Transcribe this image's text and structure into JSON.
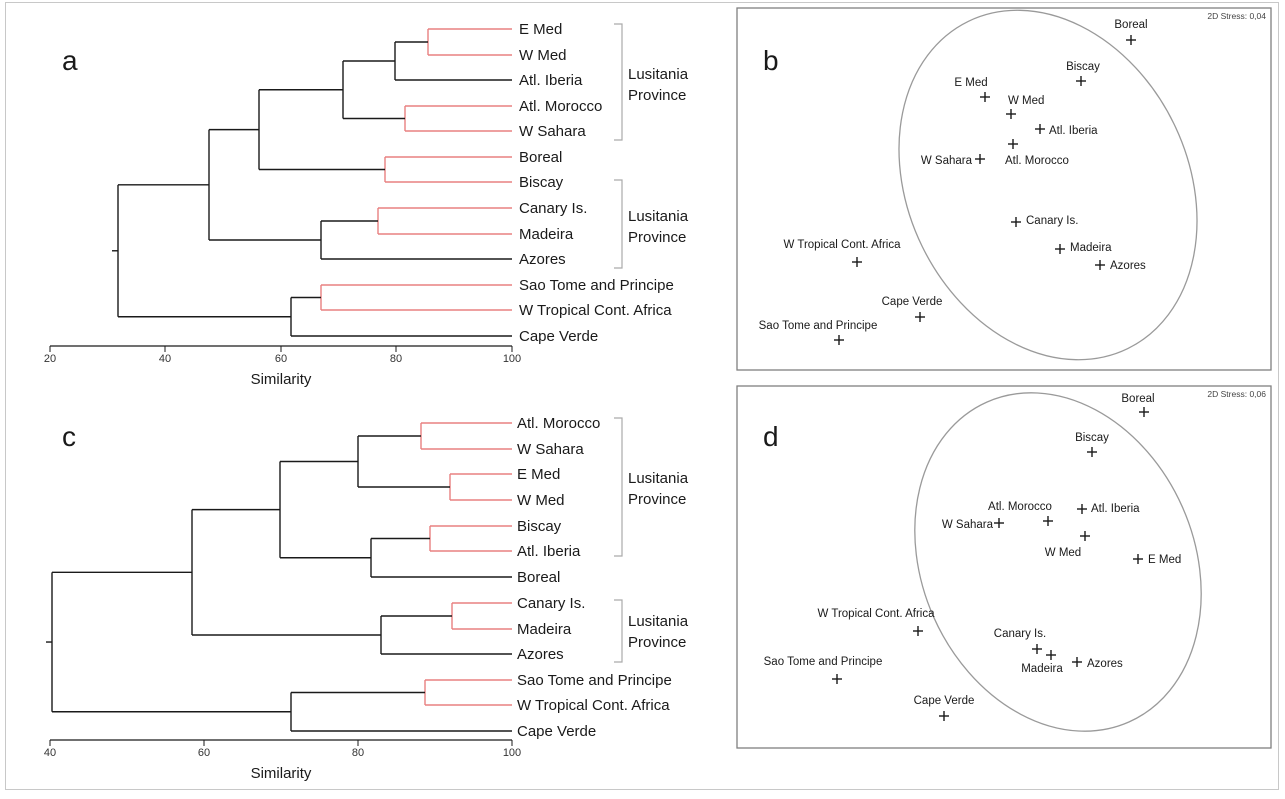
{
  "panels": {
    "a": {
      "letter": "a",
      "leaves": [
        "E Med",
        "W Med",
        "Atl. Iberia",
        "Atl. Morocco",
        "W Sahara",
        "Boreal",
        "Biscay",
        "Canary Is.",
        "Madeira",
        "Azores",
        "Sao Tome and Principe",
        "W Tropical Cont. Africa",
        "Cape Verde"
      ],
      "groups": [
        {
          "line1": "Lusitania",
          "line2": "Province"
        },
        {
          "line1": "Lusitania",
          "line2": "Province"
        }
      ],
      "axis": {
        "min": 20,
        "max": 100,
        "ticks": [
          "20",
          "40",
          "60",
          "80",
          "100"
        ],
        "label": "Similarity"
      }
    },
    "b": {
      "letter": "b",
      "stress": "2D Stress: 0,04",
      "points": [
        {
          "label": "Boreal"
        },
        {
          "label": "Biscay"
        },
        {
          "label": "E Med"
        },
        {
          "label": "W Med"
        },
        {
          "label": "Atl. Iberia"
        },
        {
          "label": "W Sahara"
        },
        {
          "label": "Atl. Morocco"
        },
        {
          "label": "Canary Is."
        },
        {
          "label": "W Tropical Cont. Africa"
        },
        {
          "label": "Madeira"
        },
        {
          "label": "Azores"
        },
        {
          "label": "Cape Verde"
        },
        {
          "label": "Sao Tome and Principe"
        }
      ]
    },
    "c": {
      "letter": "c",
      "leaves": [
        "Atl. Morocco",
        "W Sahara",
        "E Med",
        "W Med",
        "Biscay",
        "Atl. Iberia",
        "Boreal",
        "Canary Is.",
        "Madeira",
        "Azores",
        "Sao Tome and Principe",
        "W Tropical Cont. Africa",
        "Cape Verde"
      ],
      "groups": [
        {
          "line1": "Lusitania",
          "line2": "Province"
        },
        {
          "line1": "Lusitania",
          "line2": "Province"
        }
      ],
      "axis": {
        "min": 40,
        "max": 100,
        "ticks": [
          "40",
          "60",
          "80",
          "100"
        ],
        "label": "Similarity"
      }
    },
    "d": {
      "letter": "d",
      "stress": "2D Stress: 0,06",
      "points": [
        {
          "label": "Boreal"
        },
        {
          "label": "Biscay"
        },
        {
          "label": "Atl. Morocco"
        },
        {
          "label": "Atl. Iberia"
        },
        {
          "label": "W Sahara"
        },
        {
          "label": "W Med"
        },
        {
          "label": "E Med"
        },
        {
          "label": "W Tropical Cont. Africa"
        },
        {
          "label": "Canary Is."
        },
        {
          "label": "Madeira"
        },
        {
          "label": "Azores"
        },
        {
          "label": "Sao Tome and Principe"
        },
        {
          "label": "Cape Verde"
        }
      ]
    }
  },
  "colors": {
    "tree": "#1a1a1a",
    "cluster_highlight": "#e88080",
    "bracket": "#aaaaaa",
    "ellipse": "#9a9a9a",
    "box": "#808080"
  }
}
